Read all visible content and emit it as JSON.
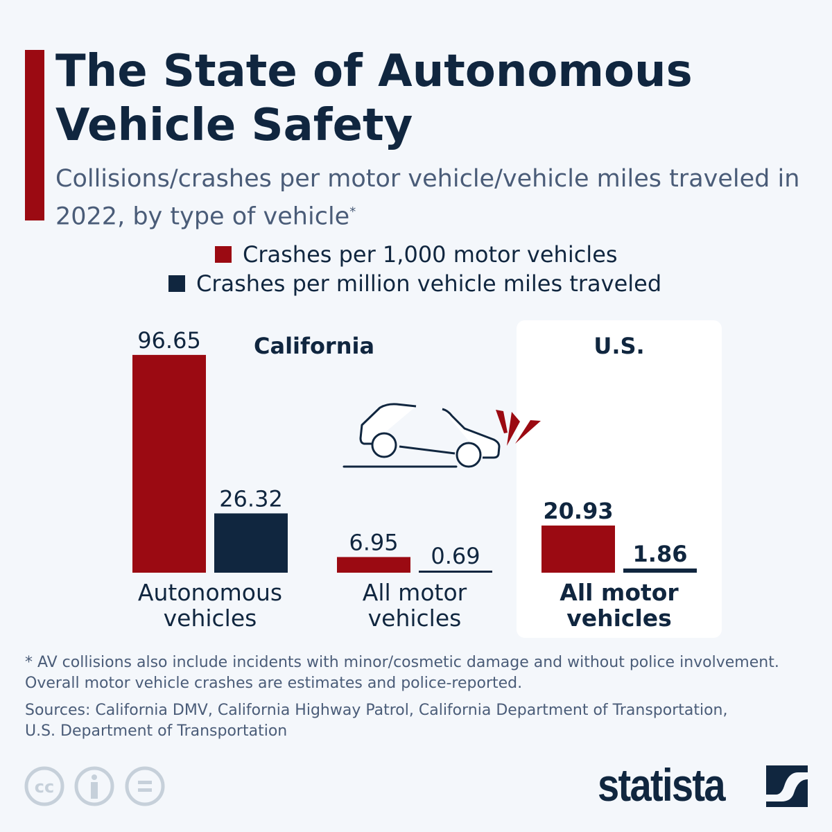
{
  "header": {
    "title": "The State of Autonomous Vehicle Safety",
    "subtitle": "Collisions/crashes per motor vehicle/vehicle miles traveled in 2022, by type of vehicle",
    "subtitle_mark": "*"
  },
  "colors": {
    "red": "#9b0a12",
    "navy": "#10263f",
    "background": "#f4f7fb"
  },
  "chart_data": {
    "type": "bar",
    "title": "The State of Autonomous Vehicle Safety",
    "groups": [
      {
        "label": "California",
        "categories": [
          {
            "label": "Autonomous vehicles",
            "values": [
              96.65,
              26.32
            ]
          },
          {
            "label": "All motor vehicles",
            "values": [
              6.95,
              0.69
            ]
          }
        ]
      },
      {
        "label": "U.S.",
        "categories": [
          {
            "label": "All motor vehicles",
            "values": [
              20.93,
              1.86
            ]
          }
        ]
      }
    ],
    "series": [
      {
        "name": "Crashes per 1,000 motor vehicles",
        "color": "#9b0a12"
      },
      {
        "name": "Crashes per million vehicle miles traveled",
        "color": "#10263f"
      }
    ],
    "value_labels": [
      [
        "96.65",
        "26.32"
      ],
      [
        "6.95",
        "0.69"
      ],
      [
        "20.93",
        "1.86"
      ]
    ],
    "legend_position": "top-center",
    "grid": false
  },
  "icons": {
    "illustration": "car-crash-icon",
    "license": [
      "cc-icon",
      "attribution-icon",
      "no-derivatives-icon"
    ],
    "logo": "statista-logo"
  },
  "footer": {
    "note1": "* AV collisions also include incidents with minor/cosmetic damage and without police involvement.",
    "note2": "Overall motor vehicle crashes are estimates and police-reported.",
    "sources1": "Sources: California DMV, California Highway Patrol, California Department of Transportation,",
    "sources2": "U.S. Department of Transportation",
    "brand": "statista"
  }
}
